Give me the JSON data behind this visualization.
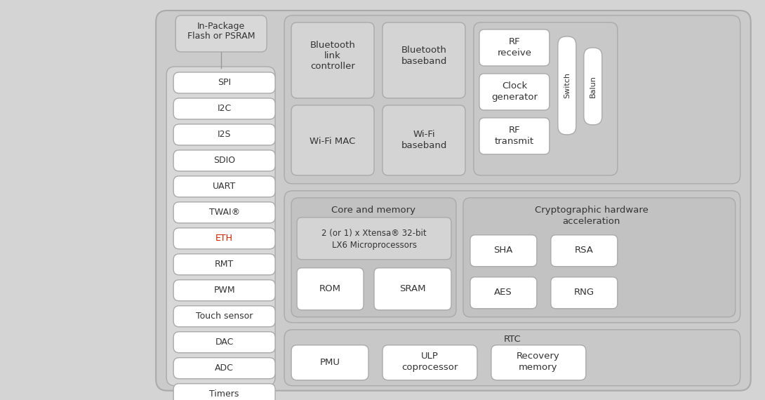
{
  "fig_bg": "#d4d4d4",
  "outer_fill": "#cbcbcb",
  "outer_edge": "#aaaaaa",
  "panel_fill": "#c2c2c2",
  "section_fill": "#c8c8c8",
  "subsection_fill": "#c2c2c2",
  "inner_fill": "#d4d4d4",
  "white": "#ffffff",
  "text_dark": "#333333",
  "eth_red": "#cc2200",
  "left_boxes": [
    "SPI",
    "I2C",
    "I2S",
    "SDIO",
    "UART",
    "TWAI®",
    "ETH",
    "RMT",
    "PWM",
    "Touch sensor",
    "DAC",
    "ADC",
    "Timers"
  ]
}
